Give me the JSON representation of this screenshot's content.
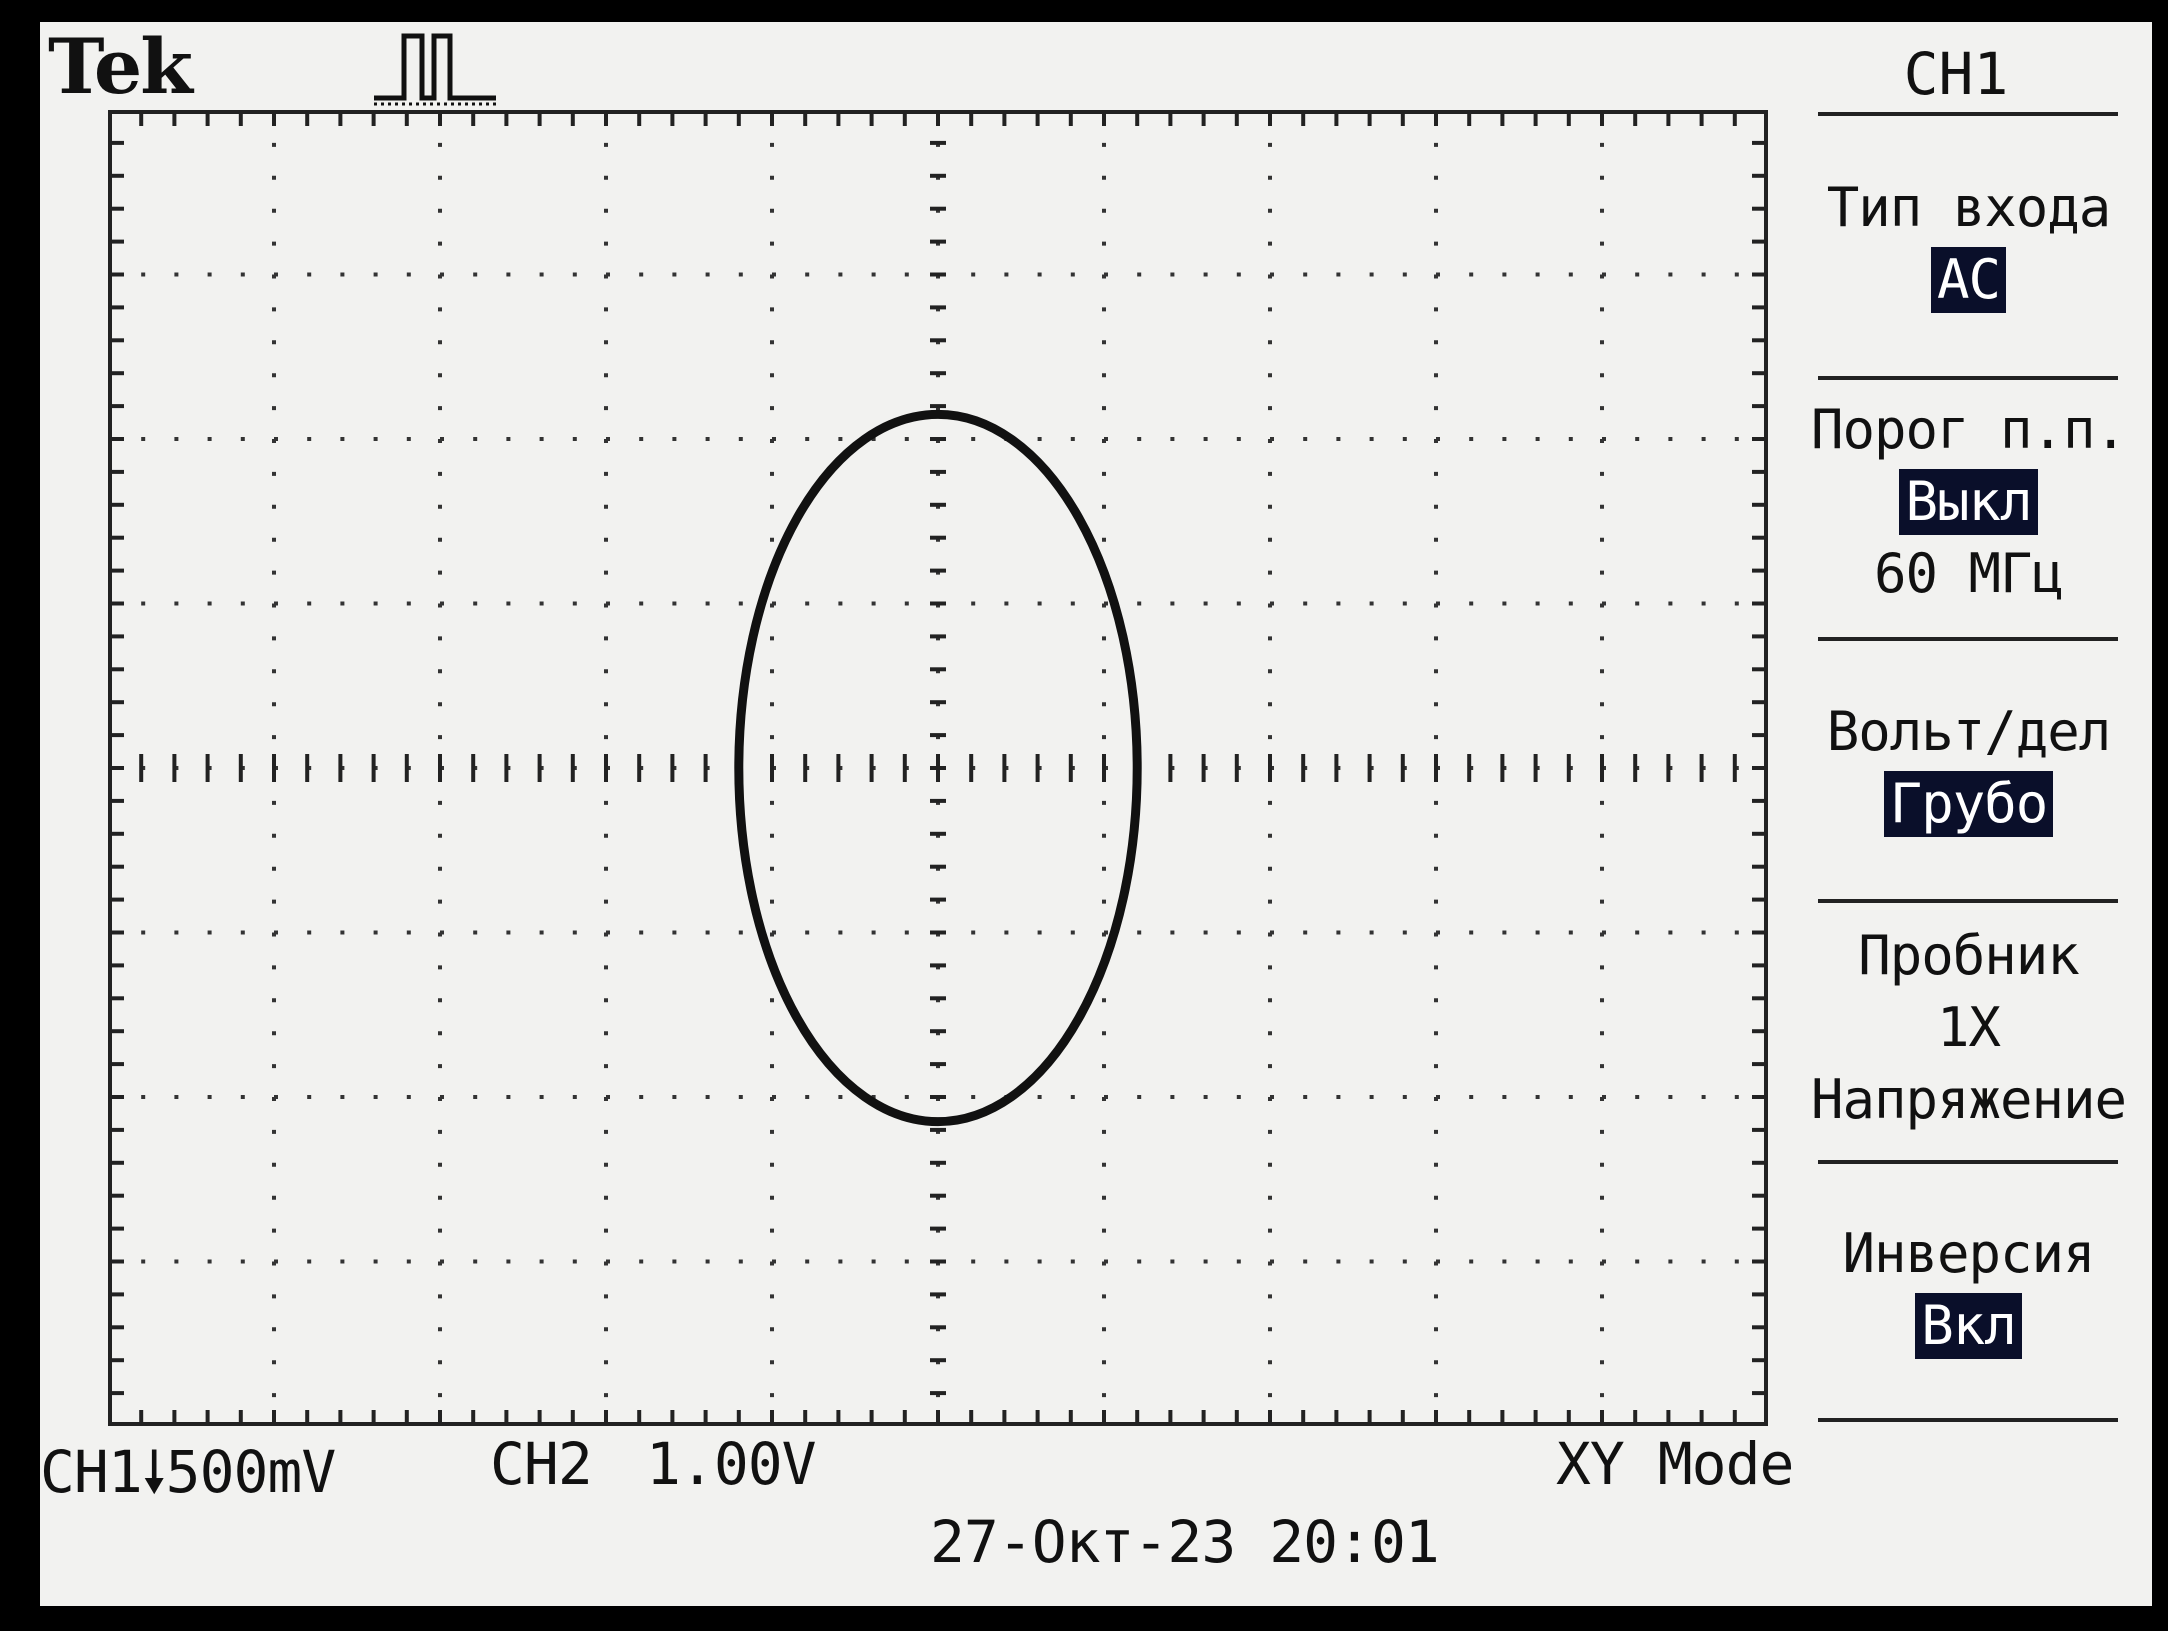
{
  "header": {
    "brand": "Tek"
  },
  "menu": {
    "title": "CH1",
    "items": [
      {
        "label": "Тип входа",
        "value": "AC",
        "highlight": true
      },
      {
        "label": "Порог п.п.",
        "value": "Выкл",
        "highlight": true,
        "extra": "60 МГц"
      },
      {
        "label": "Вольт/дел",
        "value": "Грубо",
        "highlight": true
      },
      {
        "label": "Пробник",
        "value": "1X",
        "highlight": false,
        "extra": "Напряжение"
      },
      {
        "label": "Инверсия",
        "value": "Вкл",
        "highlight": true
      }
    ]
  },
  "status": {
    "ch1": "CH1",
    "ch1_scale": "500mV",
    "ch2": "CH2",
    "ch2_scale": "1.00V",
    "mode": "XY Mode",
    "datetime": "27-Окт-23 20:01"
  },
  "trace": {
    "color": "#111111",
    "shape": "ellipse",
    "center_x_div": 0,
    "center_y_div": 0,
    "amplitude_x_div": 1.2,
    "amplitude_y_div": 2.15
  },
  "grid": {
    "h_divisions": 10,
    "v_divisions": 8
  }
}
